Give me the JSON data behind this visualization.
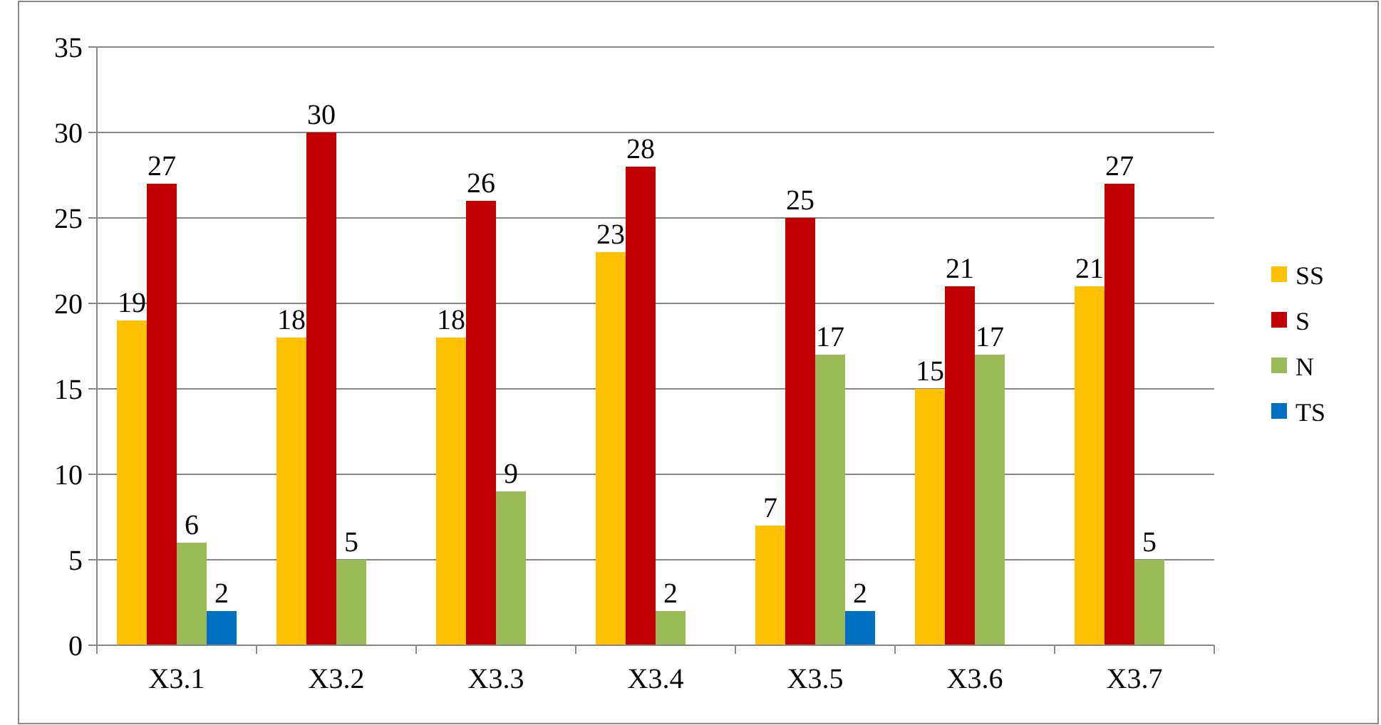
{
  "chart_data": {
    "type": "bar",
    "categories": [
      "X3.1",
      "X3.2",
      "X3.3",
      "X3.4",
      "X3.5",
      "X3.6",
      "X3.7"
    ],
    "series": [
      {
        "name": "SS",
        "color": "#ffc000",
        "values": [
          19,
          18,
          18,
          23,
          7,
          15,
          21
        ]
      },
      {
        "name": "S",
        "color": "#c00000",
        "values": [
          27,
          30,
          26,
          28,
          25,
          21,
          27
        ]
      },
      {
        "name": "N",
        "color": "#9bbb59",
        "values": [
          6,
          5,
          9,
          2,
          17,
          17,
          5
        ]
      },
      {
        "name": "TS",
        "color": "#0070c0",
        "values": [
          2,
          null,
          null,
          null,
          2,
          null,
          null
        ]
      }
    ],
    "ylim": [
      0,
      35
    ],
    "yticks": [
      0,
      5,
      10,
      15,
      20,
      25,
      30,
      35
    ],
    "grid": "y",
    "legend": "right",
    "data_labels": true
  }
}
